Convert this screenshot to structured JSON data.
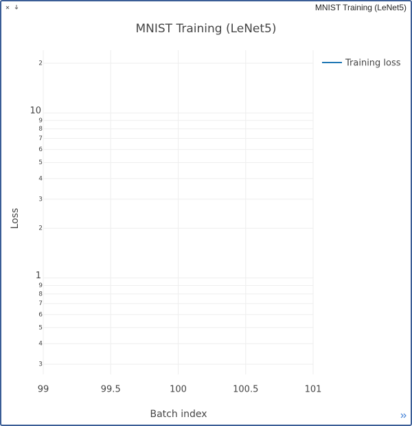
{
  "window": {
    "title": "MNIST Training (LeNet5)"
  },
  "chart_data": {
    "type": "line",
    "title": "MNIST Training (LeNet5)",
    "x_label": "Batch index",
    "y_label": "Loss",
    "x": [],
    "series": [
      {
        "name": "Training loss",
        "color": "#1f77b4",
        "values": []
      }
    ],
    "xlim": [
      99,
      101
    ],
    "xticks": [
      99,
      99.5,
      100,
      100.5,
      101
    ],
    "ylim": [
      0.26,
      24
    ],
    "y_scale": "log",
    "yticks": [
      {
        "value": 0.3,
        "label": "3"
      },
      {
        "value": 0.4,
        "label": "4"
      },
      {
        "value": 0.5,
        "label": "5"
      },
      {
        "value": 0.6,
        "label": "6"
      },
      {
        "value": 0.7,
        "label": "7"
      },
      {
        "value": 0.8,
        "label": "8"
      },
      {
        "value": 0.9,
        "label": "9"
      },
      1,
      2,
      3,
      4,
      5,
      6,
      7,
      8,
      9,
      10,
      {
        "value": 20,
        "label": "2"
      }
    ],
    "grid": true,
    "legend": "top-right"
  }
}
